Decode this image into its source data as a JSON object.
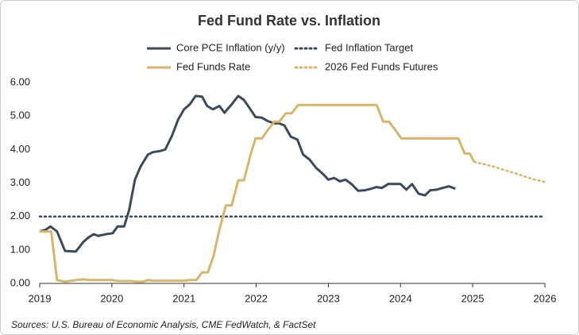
{
  "chart_data": {
    "type": "line",
    "title": "Fed Fund Rate vs. Inflation",
    "source": "Sources: U.S. Bureau of Economic Analysis, CME FedWatch, & FactSet",
    "xlim": [
      2019,
      2026
    ],
    "xticks": [
      2019,
      2020,
      2021,
      2022,
      2023,
      2024,
      2025,
      2026
    ],
    "ylim": [
      0,
      6
    ],
    "yticks": [
      {
        "value": 0,
        "label": "0.00"
      },
      {
        "value": 1,
        "label": "1.00"
      },
      {
        "value": 2,
        "label": "2.00"
      },
      {
        "value": 3,
        "label": "3.00"
      },
      {
        "value": 4,
        "label": "4.00"
      },
      {
        "value": 5,
        "label": "5.00"
      },
      {
        "value": 6,
        "label": "6.00"
      }
    ],
    "grid": false,
    "series": [
      {
        "name": "Core PCE Inflation (y/y)",
        "color": "#3d4a5c",
        "style": "solid",
        "x": [
          2019.0,
          2019.08,
          2019.15,
          2019.24,
          2019.35,
          2019.5,
          2019.61,
          2019.68,
          2019.75,
          2019.81,
          2019.92,
          2020.01,
          2020.08,
          2020.17,
          2020.24,
          2020.32,
          2020.4,
          2020.5,
          2020.57,
          2020.66,
          2020.74,
          2020.83,
          2020.92,
          2021.0,
          2021.08,
          2021.16,
          2021.25,
          2021.32,
          2021.4,
          2021.49,
          2021.56,
          2021.66,
          2021.75,
          2021.83,
          2021.92,
          2021.99,
          2022.08,
          2022.16,
          2022.25,
          2022.32,
          2022.39,
          2022.48,
          2022.57,
          2022.65,
          2022.74,
          2022.83,
          2022.92,
          2023.0,
          2023.08,
          2023.16,
          2023.24,
          2023.33,
          2023.41,
          2023.5,
          2023.58,
          2023.67,
          2023.74,
          2023.83,
          2023.92,
          2024.0,
          2024.08,
          2024.16,
          2024.25,
          2024.34,
          2024.41,
          2024.5,
          2024.58,
          2024.67,
          2024.76
        ],
        "values": [
          1.55,
          1.6,
          1.7,
          1.55,
          0.97,
          0.95,
          1.25,
          1.38,
          1.47,
          1.42,
          1.47,
          1.5,
          1.7,
          1.7,
          2.2,
          3.1,
          3.5,
          3.85,
          3.92,
          3.95,
          4.0,
          4.4,
          4.9,
          5.2,
          5.35,
          5.6,
          5.58,
          5.3,
          5.2,
          5.3,
          5.1,
          5.35,
          5.6,
          5.48,
          5.2,
          4.97,
          4.95,
          4.85,
          4.78,
          4.78,
          4.72,
          4.38,
          4.3,
          3.85,
          3.7,
          3.45,
          3.28,
          3.1,
          3.15,
          3.05,
          3.1,
          2.95,
          2.77,
          2.78,
          2.82,
          2.88,
          2.85,
          2.97,
          2.97,
          2.97,
          2.8,
          2.97,
          2.68,
          2.63,
          2.78,
          2.8,
          2.85,
          2.9,
          2.83
        ]
      },
      {
        "name": "Fed Inflation Target",
        "color": "#3d4a5c",
        "style": "dotted",
        "x": [
          2019,
          2026
        ],
        "values": [
          2,
          2
        ]
      },
      {
        "name": "Fed Funds Rate",
        "color": "#d9b56b",
        "style": "solid",
        "x": [
          2019.0,
          2019.16,
          2019.24,
          2019.35,
          2019.5,
          2019.61,
          2019.68,
          2020.0,
          2020.1,
          2020.27,
          2020.34,
          2020.43,
          2020.5,
          2020.57,
          2020.98,
          2021.09,
          2021.17,
          2021.25,
          2021.33,
          2021.41,
          2021.49,
          2021.58,
          2021.66,
          2021.75,
          2021.83,
          2021.92,
          2021.99,
          2022.08,
          2022.16,
          2022.25,
          2022.32,
          2022.41,
          2022.49,
          2022.58,
          2023.67,
          2023.76,
          2023.84,
          2023.93,
          2024.01,
          2024.8,
          2024.89,
          2024.96,
          2025.02
        ],
        "values": [
          1.55,
          1.55,
          0.1,
          0.05,
          0.1,
          0.12,
          0.1,
          0.1,
          0.07,
          0.07,
          0.05,
          0.05,
          0.1,
          0.08,
          0.08,
          0.1,
          0.1,
          0.33,
          0.33,
          0.83,
          1.6,
          2.33,
          2.33,
          3.08,
          3.08,
          3.83,
          4.33,
          4.33,
          4.58,
          4.83,
          4.83,
          5.08,
          5.08,
          5.33,
          5.33,
          4.83,
          4.83,
          4.58,
          4.33,
          4.33,
          3.88,
          3.88,
          3.63
        ]
      },
      {
        "name": "2026 Fed Funds Futures",
        "color": "#d9b56b",
        "style": "dotted",
        "x": [
          2025.02,
          2025.27,
          2025.6,
          2025.82,
          2026.0
        ],
        "values": [
          3.63,
          3.5,
          3.28,
          3.12,
          3.03
        ]
      }
    ]
  }
}
